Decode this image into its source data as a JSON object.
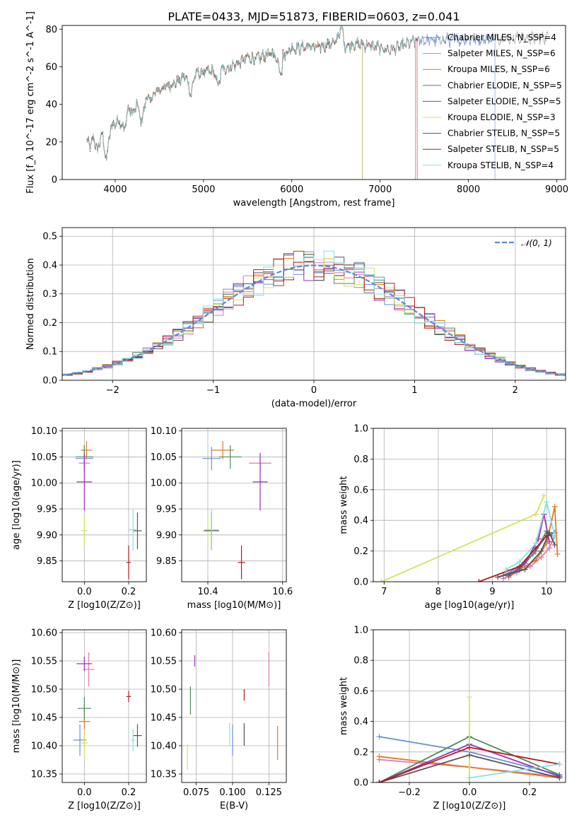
{
  "chart_data": [
    {
      "id": "spectrum",
      "type": "line",
      "title": "PLATE=0433, MJD=51873, FIBERID=0603, z=0.041",
      "xlabel": "wavelength [Angstrom, rest frame]",
      "ylabel": "Flux [f_λ 10^-17 erg cm^-2 s^-1 A^-1]",
      "xlim": [
        3400,
        9100
      ],
      "ylim": [
        0,
        82
      ],
      "xticks": [
        4000,
        5000,
        6000,
        7000,
        8000,
        9000
      ],
      "yticks": [
        0,
        20,
        40,
        60,
        80
      ],
      "grid": false,
      "legend_position": "right",
      "observed": {
        "x": [
          3680,
          3720,
          3760,
          3800,
          3850,
          3900,
          3950,
          4000,
          4050,
          4100,
          4150,
          4200,
          4250,
          4300,
          4350,
          4400,
          4450,
          4500,
          4600,
          4700,
          4800,
          4862,
          4900,
          5000,
          5100,
          5175,
          5200,
          5300,
          5400,
          5500,
          5600,
          5700,
          5800,
          5890,
          5900,
          6000,
          6100,
          6200,
          6300,
          6400,
          6500,
          6563,
          6600,
          6700,
          6800,
          6900,
          7000,
          7100,
          7200,
          7300,
          7400
        ],
        "y": [
          20,
          18,
          22,
          15,
          25,
          10,
          28,
          30,
          32,
          26,
          38,
          35,
          40,
          30,
          44,
          42,
          46,
          48,
          50,
          52,
          55,
          45,
          56,
          57,
          58,
          50,
          58,
          60,
          62,
          65,
          64,
          66,
          67,
          57,
          66,
          70,
          70,
          71,
          70,
          72,
          73,
          82,
          71,
          72,
          72,
          71,
          70,
          69,
          70,
          72,
          74
        ]
      },
      "models": [
        {
          "name": "Chabrier MILES, N_SSP=4",
          "color": "#6b8fd6",
          "end": 8300
        },
        {
          "name": "Salpeter MILES, N_SSP=6",
          "color": "#e07aa8",
          "end": 7400
        },
        {
          "name": "Kroupa MILES, N_SSP=6",
          "color": "#e07b24",
          "end": 7400
        },
        {
          "name": "Chabrier ELODIE, N_SSP=5",
          "color": "#4e8a5e",
          "end": 6800
        },
        {
          "name": "Salpeter ELODIE, N_SSP=5",
          "color": "#9d32b8",
          "end": 6800
        },
        {
          "name": "Kroupa ELODIE, N_SSP=3",
          "color": "#d4e35a",
          "end": 6800
        },
        {
          "name": "Chabrier STELIB, N_SSP=5",
          "color": "#555555",
          "end": 7400
        },
        {
          "name": "Salpeter STELIB, N_SSP=5",
          "color": "#b01c20",
          "end": 7420
        },
        {
          "name": "Kroupa STELIB, N_SSP=4",
          "color": "#86e0e0",
          "end": 7400
        }
      ]
    },
    {
      "id": "residuals",
      "type": "line",
      "xlabel": "(data-model)/error",
      "ylabel": "Normed distribution",
      "xlim": [
        -2.5,
        2.5
      ],
      "ylim": [
        0,
        0.53
      ],
      "xticks": [
        -2,
        -1,
        0,
        1,
        2
      ],
      "yticks": [
        0.0,
        0.1,
        0.2,
        0.3,
        0.4,
        0.5
      ],
      "grid": true,
      "legend_position": "top-right",
      "reference": {
        "name": "𝒩(0, 1)",
        "color": "#5b8bd6",
        "style": "dashed"
      },
      "bin_width": 0.1,
      "histogram_colors": [
        "#6b8fd6",
        "#e07aa8",
        "#e07b24",
        "#4e8a5e",
        "#9d32b8",
        "#d4e35a",
        "#555555",
        "#b01c20",
        "#86e0e0"
      ]
    },
    {
      "id": "age_vs_Z",
      "type": "scatter",
      "xlabel": "Z [log10(Z/Z⊙)]",
      "ylabel": "age  [log10(age/yr)]",
      "xlim": [
        -0.1,
        0.28
      ],
      "ylim": [
        9.81,
        10.105
      ],
      "xticks": [
        0.0,
        0.2
      ],
      "yticks": [
        9.85,
        9.9,
        9.95,
        10.0,
        10.05,
        10.1
      ],
      "grid": true,
      "points": [
        {
          "x": 0.0,
          "y": 10.047,
          "xerr": 0.08,
          "yerr": 0.045,
          "color": "#6b8fd6"
        },
        {
          "x": 0.0,
          "y": 10.038,
          "xerr": 0.05,
          "yerr": 0.04,
          "color": "#e07aa8"
        },
        {
          "x": 0.01,
          "y": 10.063,
          "xerr": 0.05,
          "yerr": 0.035,
          "color": "#e07b24"
        },
        {
          "x": 0.0,
          "y": 10.05,
          "xerr": 0.08,
          "yerr": 0.045,
          "color": "#4e8a5e"
        },
        {
          "x": 0.0,
          "y": 10.002,
          "xerr": 0.07,
          "yerr": 0.11,
          "color": "#9d32b8"
        },
        {
          "x": 0.0,
          "y": 9.908,
          "xerr": 0.03,
          "yerr": 0.06,
          "color": "#d4e35a"
        },
        {
          "x": 0.24,
          "y": 9.908,
          "xerr": 0.04,
          "yerr": 0.07,
          "color": "#555555"
        },
        {
          "x": 0.2,
          "y": 9.847,
          "xerr": 0.02,
          "yerr": 0.065,
          "color": "#b01c20"
        },
        {
          "x": 0.22,
          "y": 9.91,
          "xerr": 0.04,
          "yerr": 0.08,
          "color": "#86e0e0"
        }
      ]
    },
    {
      "id": "age_vs_mass",
      "type": "scatter",
      "xlabel": "mass [log10(M/M⊙)]",
      "ylabel": "",
      "xlim": [
        10.33,
        10.61
      ],
      "ylim": [
        9.81,
        10.105
      ],
      "xticks": [
        10.4,
        10.6
      ],
      "yticks": [
        9.85,
        9.9,
        9.95,
        10.0,
        10.05,
        10.1
      ],
      "grid": true,
      "points": [
        {
          "x": 10.41,
          "y": 10.047,
          "xerr": 0.05,
          "yerr": 0.045,
          "color": "#6b8fd6"
        },
        {
          "x": 10.54,
          "y": 10.038,
          "xerr": 0.06,
          "yerr": 0.04,
          "color": "#e07aa8"
        },
        {
          "x": 10.44,
          "y": 10.063,
          "xerr": 0.06,
          "yerr": 0.035,
          "color": "#e07b24"
        },
        {
          "x": 10.46,
          "y": 10.05,
          "xerr": 0.06,
          "yerr": 0.045,
          "color": "#4e8a5e"
        },
        {
          "x": 10.54,
          "y": 10.002,
          "xerr": 0.04,
          "yerr": 0.11,
          "color": "#9d32b8"
        },
        {
          "x": 10.4,
          "y": 9.908,
          "xerr": 0.03,
          "yerr": 0.06,
          "color": "#d4e35a"
        },
        {
          "x": 10.41,
          "y": 9.908,
          "xerr": 0.04,
          "yerr": 0.07,
          "color": "#555555"
        },
        {
          "x": 10.49,
          "y": 9.847,
          "xerr": 0.02,
          "yerr": 0.065,
          "color": "#b01c20"
        },
        {
          "x": 10.41,
          "y": 9.91,
          "xerr": 0.04,
          "yerr": 0.08,
          "color": "#86e0e0"
        }
      ]
    },
    {
      "id": "massweight_vs_age",
      "type": "line",
      "xlabel": "age  [log10(age/yr)]",
      "ylabel": "mass weight",
      "xlim": [
        6.8,
        10.35
      ],
      "ylim": [
        0,
        1.0
      ],
      "xticks": [
        7,
        8,
        9,
        10
      ],
      "yticks": [
        0.0,
        0.2,
        0.4,
        0.6,
        0.8,
        1.0
      ],
      "grid": true,
      "series": [
        {
          "color": "#6b8fd6",
          "x": [
            9.25,
            9.5,
            9.75,
            10.0,
            10.15
          ],
          "y": [
            0.05,
            0.1,
            0.18,
            0.3,
            0.32
          ]
        },
        {
          "color": "#e07aa8",
          "x": [
            9.2,
            9.45,
            9.7,
            9.9,
            10.05,
            10.15
          ],
          "y": [
            0.02,
            0.06,
            0.1,
            0.16,
            0.22,
            0.3
          ]
        },
        {
          "color": "#e07b24",
          "x": [
            9.3,
            9.5,
            9.8,
            10.0,
            10.15,
            10.2
          ],
          "y": [
            0.03,
            0.08,
            0.14,
            0.25,
            0.49,
            0.18
          ]
        },
        {
          "color": "#4e8a5e",
          "x": [
            9.2,
            9.5,
            9.8,
            10.0,
            10.1
          ],
          "y": [
            0.04,
            0.08,
            0.2,
            0.33,
            0.3
          ]
        },
        {
          "color": "#9d32b8",
          "x": [
            9.3,
            9.6,
            9.85,
            9.95,
            10.05
          ],
          "y": [
            0.04,
            0.12,
            0.28,
            0.44,
            0.26
          ]
        },
        {
          "color": "#d4e35a",
          "x": [
            6.95,
            9.8,
            9.95
          ],
          "y": [
            0.0,
            0.44,
            0.56
          ]
        },
        {
          "color": "#555555",
          "x": [
            9.1,
            9.6,
            9.9,
            10.05,
            10.15
          ],
          "y": [
            0.03,
            0.08,
            0.2,
            0.32,
            0.24
          ]
        },
        {
          "color": "#b01c20",
          "x": [
            8.75,
            9.5,
            9.8,
            10.0
          ],
          "y": [
            0.0,
            0.1,
            0.22,
            0.3
          ]
        },
        {
          "color": "#86e0e0",
          "x": [
            9.25,
            9.5,
            9.8,
            10.0,
            10.15
          ],
          "y": [
            0.08,
            0.13,
            0.25,
            0.52,
            0.3
          ]
        }
      ]
    },
    {
      "id": "mass_vs_Z",
      "type": "scatter",
      "xlabel": "Z [log10(Z/Z⊙)]",
      "ylabel": "mass [log10(M/M⊙)]",
      "xlim": [
        -0.1,
        0.28
      ],
      "ylim": [
        10.335,
        10.605
      ],
      "xticks": [
        0.0,
        0.2
      ],
      "yticks": [
        10.35,
        10.4,
        10.45,
        10.5,
        10.55,
        10.6
      ],
      "grid": true,
      "points": [
        {
          "x": -0.02,
          "y": 10.41,
          "xerr": 0.06,
          "yerr": 0.055,
          "color": "#6b8fd6"
        },
        {
          "x": 0.02,
          "y": 10.535,
          "xerr": 0.05,
          "yerr": 0.06,
          "color": "#e07aa8"
        },
        {
          "x": 0.0,
          "y": 10.443,
          "xerr": 0.05,
          "yerr": 0.06,
          "color": "#e07b24"
        },
        {
          "x": 0.0,
          "y": 10.466,
          "xerr": 0.06,
          "yerr": 0.04,
          "color": "#4e8a5e"
        },
        {
          "x": 0.0,
          "y": 10.545,
          "xerr": 0.07,
          "yerr": 0.025,
          "color": "#9d32b8"
        },
        {
          "x": 0.0,
          "y": 10.405,
          "xerr": 0.03,
          "yerr": 0.05,
          "color": "#d4e35a"
        },
        {
          "x": 0.24,
          "y": 10.418,
          "xerr": 0.04,
          "yerr": 0.04,
          "color": "#555555"
        },
        {
          "x": 0.2,
          "y": 10.487,
          "xerr": 0.02,
          "yerr": 0.02,
          "color": "#b01c20"
        },
        {
          "x": 0.22,
          "y": 10.41,
          "xerr": 0.02,
          "yerr": 0.04,
          "color": "#86e0e0"
        }
      ]
    },
    {
      "id": "mass_vs_ebv",
      "type": "scatter",
      "xlabel": "E(B-V)",
      "ylabel": "",
      "xlim": [
        0.065,
        0.137
      ],
      "ylim": [
        10.335,
        10.605
      ],
      "xticks": [
        0.075,
        0.1,
        0.125
      ],
      "yticks": [
        10.35,
        10.4,
        10.45,
        10.5,
        10.55,
        10.6
      ],
      "grid": true,
      "points": [
        {
          "x": 0.1,
          "y": 10.41,
          "xerr": 0,
          "yerr": 0.055,
          "color": "#6b8fd6"
        },
        {
          "x": 0.125,
          "y": 10.535,
          "xerr": 0,
          "yerr": 0.06,
          "color": "#e07aa8"
        },
        {
          "x": 0.131,
          "y": 10.405,
          "xerr": 0,
          "yerr": 0.06,
          "color": "#e07b24"
        },
        {
          "x": 0.071,
          "y": 10.48,
          "xerr": 0,
          "yerr": 0.05,
          "color": "#4e8a5e"
        },
        {
          "x": 0.074,
          "y": 10.55,
          "xerr": 0,
          "yerr": 0.02,
          "color": "#9d32b8"
        },
        {
          "x": 0.069,
          "y": 10.38,
          "xerr": 0,
          "yerr": 0.045,
          "color": "#d4e35a"
        },
        {
          "x": 0.108,
          "y": 10.42,
          "xerr": 0,
          "yerr": 0.04,
          "color": "#555555"
        },
        {
          "x": 0.108,
          "y": 10.49,
          "xerr": 0,
          "yerr": 0.02,
          "color": "#b01c20"
        },
        {
          "x": 0.098,
          "y": 10.42,
          "xerr": 0,
          "yerr": 0.04,
          "color": "#86e0e0"
        }
      ]
    },
    {
      "id": "massweight_vs_Z",
      "type": "line",
      "xlabel": "Z [log10(Z/Z⊙)]",
      "ylabel": "mass weight",
      "xlim": [
        -0.32,
        0.32
      ],
      "ylim": [
        0,
        1.0
      ],
      "xticks": [
        -0.2,
        0.0,
        0.2
      ],
      "yticks": [
        0.0,
        0.2,
        0.4,
        0.6,
        0.8,
        1.0
      ],
      "grid": true,
      "series": [
        {
          "color": "#6b8fd6",
          "x": [
            -0.3,
            0.0,
            0.3
          ],
          "y": [
            0.3,
            0.2,
            0.05
          ]
        },
        {
          "color": "#e07aa8",
          "x": [
            -0.3,
            0.0,
            0.3
          ],
          "y": [
            0.15,
            0.1,
            0.04
          ]
        },
        {
          "color": "#e07b24",
          "x": [
            -0.3,
            0.0,
            0.3
          ],
          "y": [
            0.17,
            0.1,
            0.03
          ]
        },
        {
          "color": "#4e8a5e",
          "x": [
            -0.3,
            0.0,
            0.3
          ],
          "y": [
            0.0,
            0.3,
            0.05
          ]
        },
        {
          "color": "#9d32b8",
          "x": [
            -0.3,
            0.0,
            0.3
          ],
          "y": [
            0.0,
            0.25,
            0.04
          ]
        },
        {
          "color": "#d4e35a",
          "x": [
            0.0,
            0.0
          ],
          "y": [
            0.0,
            0.56
          ]
        },
        {
          "color": "#555555",
          "x": [
            -0.3,
            0.0,
            0.3
          ],
          "y": [
            0.0,
            0.18,
            0.03
          ]
        },
        {
          "color": "#b01c20",
          "x": [
            -0.3,
            0.0,
            0.3
          ],
          "y": [
            0.0,
            0.23,
            0.12
          ]
        },
        {
          "color": "#86e0e0",
          "x": [
            0.0,
            0.3
          ],
          "y": [
            0.03,
            0.12
          ]
        }
      ]
    }
  ]
}
